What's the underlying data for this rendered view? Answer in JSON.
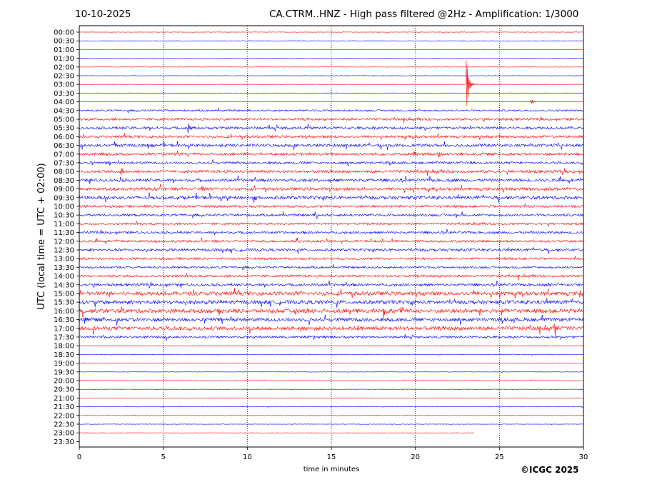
{
  "header": {
    "date": "10-10-2025",
    "title": "CA.CTRM..HNZ - High pass filtered @2Hz - Amplification: 1/3000"
  },
  "footer": {
    "copyright": "©ICGC 2025"
  },
  "chart_data": {
    "type": "line",
    "subtype": "helicorder",
    "xlabel": "time in minutes",
    "ylabel": "UTC (local time = UTC + 02:00)",
    "xlim": [
      0,
      30
    ],
    "xticks": [
      0,
      5,
      10,
      15,
      20,
      25,
      30
    ],
    "vertical_gridlines": [
      5,
      10,
      15,
      20,
      25
    ],
    "grid": "dotted vertical lines",
    "rows": [
      "00:00",
      "00:30",
      "01:00",
      "01:30",
      "02:00",
      "02:30",
      "03:00",
      "03:30",
      "04:00",
      "04:30",
      "05:00",
      "05:30",
      "06:00",
      "06:30",
      "07:00",
      "07:30",
      "08:00",
      "08:30",
      "09:00",
      "09:30",
      "10:00",
      "10:30",
      "11:00",
      "11:30",
      "12:00",
      "12:30",
      "13:00",
      "13:30",
      "14:00",
      "14:30",
      "15:00",
      "15:30",
      "16:00",
      "16:30",
      "17:00",
      "17:30",
      "18:00",
      "18:30",
      "19:00",
      "19:30",
      "20:00",
      "20:30",
      "21:00",
      "21:30",
      "22:00",
      "22:30",
      "23:00",
      "23:30"
    ],
    "colors": {
      "even_rows": "#ff0000",
      "odd_rows": "#0000ff"
    },
    "recording_end": {
      "row": "23:00",
      "minute": 23.5
    },
    "noise_level": [
      0.3,
      0.3,
      0.3,
      0.3,
      0.3,
      0.3,
      0.3,
      0.3,
      0.3,
      1.2,
      1.6,
      1.8,
      1.7,
      2.0,
      1.8,
      1.6,
      1.8,
      2.0,
      2.0,
      2.2,
      1.6,
      1.6,
      1.4,
      1.6,
      1.5,
      1.8,
      1.5,
      1.4,
      1.6,
      1.8,
      2.6,
      2.6,
      2.8,
      2.4,
      2.6,
      1.5,
      0.5,
      0.4,
      0.3,
      0.3,
      0.3,
      0.3,
      0.3,
      0.3,
      0.3,
      0.3,
      0.3,
      0.3
    ],
    "events": [
      {
        "row": "03:00",
        "minute": 23.05,
        "amplitude": 40
      },
      {
        "row": "04:00",
        "minute": 26.9,
        "amplitude": 4
      },
      {
        "row": "05:30",
        "minute": 6.5,
        "amplitude": 8
      },
      {
        "row": "06:30",
        "minute": 2.1,
        "amplitude": 6
      },
      {
        "row": "06:30",
        "minute": 4.1,
        "amplitude": 4
      },
      {
        "row": "07:00",
        "minute": 19.9,
        "amplitude": 5
      },
      {
        "row": "07:00",
        "minute": 21.4,
        "amplitude": 4
      },
      {
        "row": "08:00",
        "minute": 2.5,
        "amplitude": 6
      },
      {
        "row": "09:00",
        "minute": 7.3,
        "amplitude": 5
      },
      {
        "row": "09:30",
        "minute": 10.4,
        "amplitude": 6
      },
      {
        "row": "14:30",
        "minute": 27.9,
        "amplitude": 4
      },
      {
        "row": "15:00",
        "minute": 5.0,
        "amplitude": 4
      },
      {
        "row": "15:00",
        "minute": 29.8,
        "amplitude": 5
      },
      {
        "row": "16:00",
        "minute": 13.6,
        "amplitude": 6
      },
      {
        "row": "16:00",
        "minute": 18.1,
        "amplitude": 8
      },
      {
        "row": "16:30",
        "minute": 0.3,
        "amplitude": 4
      },
      {
        "row": "17:00",
        "minute": 16.6,
        "amplitude": 5
      },
      {
        "row": "17:00",
        "minute": 28.3,
        "amplitude": 10
      }
    ]
  }
}
